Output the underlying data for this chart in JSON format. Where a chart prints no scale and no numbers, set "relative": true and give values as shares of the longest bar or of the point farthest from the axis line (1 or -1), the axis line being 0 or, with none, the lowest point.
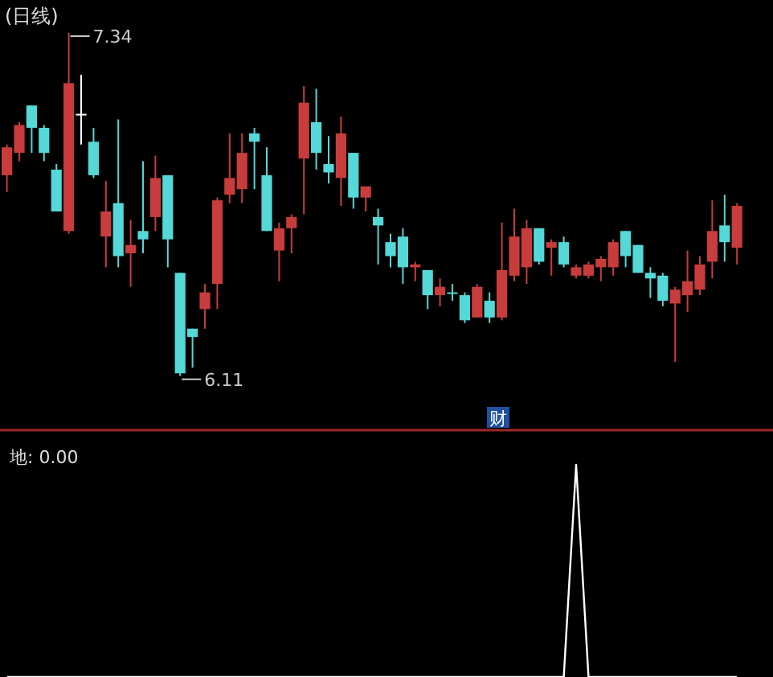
{
  "chart_data": [
    {
      "type": "candlestick",
      "title": "(日线)",
      "categories": [
        null,
        null,
        null,
        null,
        null,
        null,
        null,
        null,
        null,
        null,
        null,
        null,
        null,
        null,
        null,
        null,
        null,
        null,
        null,
        null,
        null,
        null,
        null,
        null,
        null,
        null,
        null,
        null,
        null,
        null,
        null,
        null,
        null,
        null,
        null,
        null,
        null,
        null,
        null,
        null,
        null,
        null,
        null,
        null,
        null,
        null,
        null,
        null,
        null,
        null,
        null,
        null,
        null,
        null,
        null,
        null,
        null,
        null,
        null,
        null
      ],
      "ohlc": [
        [
          6.83,
          6.94,
          6.77,
          6.93
        ],
        [
          6.91,
          7.02,
          6.88,
          7.01
        ],
        [
          7.08,
          7.08,
          6.91,
          7.0
        ],
        [
          7.0,
          7.01,
          6.88,
          6.91
        ],
        [
          6.85,
          6.87,
          6.7,
          6.7
        ],
        [
          6.63,
          7.34,
          6.62,
          7.16
        ],
        [
          7.05,
          7.19,
          6.94,
          7.05
        ],
        [
          6.95,
          7.0,
          6.82,
          6.83
        ],
        [
          6.61,
          6.81,
          6.5,
          6.7
        ],
        [
          6.73,
          7.03,
          6.5,
          6.54
        ],
        [
          6.55,
          6.67,
          6.43,
          6.58
        ],
        [
          6.63,
          6.88,
          6.55,
          6.6
        ],
        [
          6.68,
          6.9,
          6.63,
          6.82
        ],
        [
          6.83,
          6.83,
          6.5,
          6.6
        ],
        [
          6.48,
          6.48,
          6.11,
          6.12
        ],
        [
          6.28,
          6.28,
          6.14,
          6.25
        ],
        [
          6.35,
          6.44,
          6.28,
          6.41
        ],
        [
          6.44,
          6.75,
          6.35,
          6.74
        ],
        [
          6.76,
          6.98,
          6.73,
          6.82
        ],
        [
          6.78,
          6.98,
          6.73,
          6.91
        ],
        [
          6.98,
          7.0,
          6.78,
          6.95
        ],
        [
          6.83,
          6.93,
          6.63,
          6.63
        ],
        [
          6.56,
          6.66,
          6.45,
          6.64
        ],
        [
          6.64,
          6.69,
          6.55,
          6.68
        ],
        [
          6.89,
          7.15,
          6.69,
          7.09
        ],
        [
          7.02,
          7.14,
          6.85,
          6.91
        ],
        [
          6.87,
          6.97,
          6.8,
          6.84
        ],
        [
          6.82,
          7.04,
          6.72,
          6.98
        ],
        [
          6.91,
          6.91,
          6.71,
          6.75
        ],
        [
          6.75,
          6.79,
          6.7,
          6.79
        ],
        [
          6.68,
          6.71,
          6.51,
          6.65
        ],
        [
          6.59,
          6.62,
          6.5,
          6.54
        ],
        [
          6.61,
          6.64,
          6.44,
          6.5
        ],
        [
          6.5,
          6.52,
          6.45,
          6.51
        ],
        [
          6.49,
          6.49,
          6.35,
          6.4
        ],
        [
          6.4,
          6.46,
          6.36,
          6.43
        ],
        [
          6.41,
          6.44,
          6.38,
          6.41
        ],
        [
          6.4,
          6.41,
          6.3,
          6.31
        ],
        [
          6.32,
          6.44,
          6.32,
          6.43
        ],
        [
          6.38,
          6.41,
          6.3,
          6.32
        ],
        [
          6.32,
          6.66,
          6.31,
          6.49
        ],
        [
          6.47,
          6.71,
          6.45,
          6.61
        ],
        [
          6.5,
          6.67,
          6.44,
          6.64
        ],
        [
          6.64,
          6.64,
          6.51,
          6.52
        ],
        [
          6.57,
          6.6,
          6.47,
          6.59
        ],
        [
          6.59,
          6.61,
          6.5,
          6.51
        ],
        [
          6.47,
          6.51,
          6.46,
          6.5
        ],
        [
          6.47,
          6.52,
          6.46,
          6.51
        ],
        [
          6.5,
          6.54,
          6.45,
          6.53
        ],
        [
          6.5,
          6.6,
          6.47,
          6.59
        ],
        [
          6.63,
          6.63,
          6.5,
          6.54
        ],
        [
          6.58,
          6.58,
          6.48,
          6.48
        ],
        [
          6.48,
          6.5,
          6.39,
          6.46
        ],
        [
          6.47,
          6.48,
          6.36,
          6.38
        ],
        [
          6.37,
          6.43,
          6.16,
          6.42
        ],
        [
          6.4,
          6.56,
          6.34,
          6.45
        ],
        [
          6.42,
          6.54,
          6.4,
          6.51
        ],
        [
          6.52,
          6.74,
          6.46,
          6.63
        ],
        [
          6.65,
          6.76,
          6.52,
          6.59
        ],
        [
          6.57,
          6.73,
          6.51,
          6.72
        ]
      ],
      "colors": [
        "#c83c3c",
        "#c83c3c",
        "#54d8d8",
        "#54d8d8",
        "#54d8d8",
        "#c83c3c",
        "#ffffff",
        "#54d8d8",
        "#c83c3c",
        "#54d8d8",
        "#c83c3c",
        "#54d8d8",
        "#c83c3c",
        "#54d8d8",
        "#54d8d8",
        "#54d8d8",
        "#c83c3c",
        "#c83c3c",
        "#c83c3c",
        "#c83c3c",
        "#54d8d8",
        "#54d8d8",
        "#c83c3c",
        "#c83c3c",
        "#c83c3c",
        "#54d8d8",
        "#54d8d8",
        "#c83c3c",
        "#54d8d8",
        "#c83c3c",
        "#54d8d8",
        "#54d8d8",
        "#54d8d8",
        "#c83c3c",
        "#54d8d8",
        "#c83c3c",
        "#54d8d8",
        "#54d8d8",
        "#c83c3c",
        "#54d8d8",
        "#c83c3c",
        "#c83c3c",
        "#c83c3c",
        "#54d8d8",
        "#c83c3c",
        "#54d8d8",
        "#c83c3c",
        "#c83c3c",
        "#c83c3c",
        "#c83c3c",
        "#54d8d8",
        "#54d8d8",
        "#54d8d8",
        "#54d8d8",
        "#c83c3c",
        "#c83c3c",
        "#c83c3c",
        "#c83c3c",
        "#54d8d8",
        "#c83c3c"
      ],
      "annotations": [
        "7.34",
        "6.11",
        "财"
      ]
    },
    {
      "type": "line",
      "title": "地: 0.00",
      "relative": true,
      "color": "#ffffff",
      "categories": [
        null,
        null,
        null,
        null,
        null,
        null,
        null,
        null,
        null,
        null,
        null,
        null,
        null,
        null,
        null,
        null,
        null,
        null,
        null,
        null,
        null,
        null,
        null,
        null,
        null,
        null,
        null,
        null,
        null,
        null,
        null,
        null,
        null,
        null,
        null,
        null,
        null,
        null,
        null,
        null,
        null,
        null,
        null,
        null,
        null,
        null,
        null,
        null,
        null,
        null,
        null,
        null,
        null,
        null,
        null,
        null,
        null,
        null,
        null,
        null
      ],
      "values": [
        0,
        0,
        0,
        0,
        0,
        0,
        0,
        0,
        0,
        0,
        0,
        0,
        0,
        0,
        0,
        0,
        0,
        0,
        0,
        0,
        0,
        0,
        0,
        0,
        0,
        0,
        0,
        0,
        0,
        0,
        0,
        0,
        0,
        0,
        0,
        0,
        0,
        0,
        0,
        0,
        0,
        0,
        0,
        0,
        0,
        0,
        1,
        0,
        0,
        0,
        0,
        0,
        0,
        0,
        0,
        0,
        0,
        0,
        0,
        0
      ]
    }
  ]
}
